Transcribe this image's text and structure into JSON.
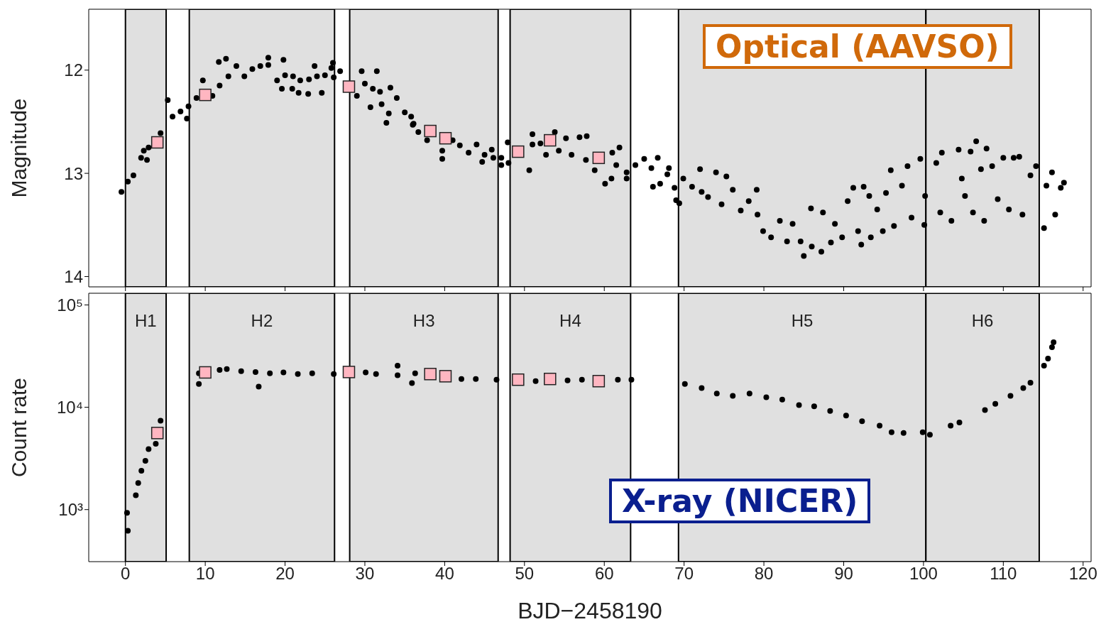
{
  "chart_data": [
    {
      "type": "scatter",
      "ylabel": "Magnitude",
      "xlim": [
        -4.6,
        121
      ],
      "xticks": [
        0,
        10,
        20,
        30,
        40,
        50,
        60,
        70,
        80,
        90,
        100,
        110,
        120
      ],
      "ylim": [
        14.1,
        11.41
      ],
      "yticks": [
        12,
        13,
        14
      ],
      "tick_labels": "y",
      "annotations": [
        "Optical (AAVSO)"
      ],
      "bands": [
        {
          "axis": "x",
          "from": 0,
          "to": 5.1,
          "color": "#e0e0e0"
        },
        {
          "axis": "x",
          "from": 8,
          "to": 26.2,
          "color": "#e0e0e0"
        },
        {
          "axis": "x",
          "from": 28.1,
          "to": 46.7,
          "color": "#e0e0e0"
        },
        {
          "axis": "x",
          "from": 48.2,
          "to": 63.3,
          "color": "#e0e0e0"
        },
        {
          "axis": "x",
          "from": 69.3,
          "to": 100.3,
          "color": "#e0e0e0"
        },
        {
          "axis": "x",
          "from": 100.3,
          "to": 114.5,
          "color": "#e0e0e0"
        }
      ],
      "series": [
        {
          "color": "#000000",
          "marker": "circle",
          "x": [
            -0.5,
            0.3,
            1.0,
            1.96,
            2.3,
            2.7,
            2.9,
            4.4,
            5.3,
            5.9,
            6.9,
            7.7,
            7.9,
            8.9,
            9.7,
            10.9,
            11.7,
            11.8,
            12.6,
            12.9,
            13.9,
            14.9,
            15.9,
            16.9,
            17.9,
            17.9,
            19.8,
            19.0,
            19.6,
            20.0,
            21.0,
            20.9,
            21.7,
            21.9,
            22.9,
            23.0,
            23.7,
            24.0,
            24.6,
            25.0,
            25.8,
            26.0,
            26.1,
            26.9,
            29.0,
            29.6,
            30.0,
            30.7,
            31.0,
            31.5,
            31.9,
            32.1,
            32.7,
            33.2,
            33.0,
            34.0,
            35.0,
            35.8,
            36.0,
            36.1,
            36.7,
            37.8,
            39.7,
            39.7,
            41.0,
            41.9,
            43.0,
            44.0,
            44.7,
            45.0,
            45.9,
            46.1,
            47.1,
            47.1,
            47.9,
            48.0,
            50.6,
            51.0,
            51.0,
            52.0,
            52.7,
            53.8,
            54.3,
            55.2,
            55.9,
            56.9,
            57.8,
            57.7,
            58.8,
            60.1,
            60.9,
            61.0,
            61.9,
            61.5,
            62.8,
            62.8,
            63.9,
            65.0,
            65.9,
            66.7,
            66.1,
            67.0,
            68.1,
            67.9,
            68.8,
            69.4,
            69.0,
            69.9,
            71.0,
            72.0,
            72.2,
            73.0,
            74.0,
            74.7,
            75.3,
            76.1,
            77.1,
            78.1,
            79.1,
            79.2,
            79.9,
            80.9,
            82.0,
            82.9,
            83.6,
            84.6,
            85.0,
            85.9,
            86.0,
            87.2,
            87.4,
            88.4,
            88.9,
            89.8,
            90.5,
            91.2,
            91.8,
            92.2,
            92.5,
            93.2,
            93.4,
            94.2,
            94.9,
            95.3,
            95.9,
            96.3,
            97.3,
            98.0,
            98.5,
            99.6,
            100.1,
            100.2,
            101.6,
            102.3,
            102.1,
            103.5,
            104.4,
            104.8,
            105.2,
            105.9,
            106.2,
            106.6,
            107.2,
            107.6,
            107.9,
            108.6,
            109.3,
            110.0,
            110.7,
            111.3,
            112.0,
            112.4,
            113.4,
            114.1,
            115.1,
            115.4,
            116.1,
            116.5,
            117.2,
            117.6
          ],
          "values": [
            13.18,
            13.08,
            13.02,
            12.85,
            12.78,
            12.87,
            12.75,
            12.61,
            12.29,
            12.45,
            12.4,
            12.47,
            12.35,
            12.27,
            12.1,
            12.25,
            11.92,
            12.15,
            11.89,
            12.06,
            11.96,
            12.06,
            11.99,
            11.96,
            11.88,
            11.95,
            11.9,
            12.1,
            12.18,
            12.05,
            12.06,
            12.18,
            12.22,
            12.1,
            12.23,
            12.09,
            11.96,
            12.06,
            12.22,
            12.05,
            11.98,
            11.93,
            12.07,
            12.01,
            12.25,
            12.01,
            12.13,
            12.36,
            12.18,
            12.01,
            12.21,
            12.33,
            12.51,
            12.17,
            12.42,
            12.27,
            12.41,
            12.45,
            12.53,
            12.52,
            12.6,
            12.68,
            12.78,
            12.86,
            12.68,
            12.73,
            12.8,
            12.72,
            12.89,
            12.82,
            12.77,
            12.85,
            12.85,
            12.92,
            12.7,
            12.9,
            12.97,
            12.62,
            12.72,
            12.71,
            12.82,
            12.6,
            12.78,
            12.66,
            12.82,
            12.65,
            12.64,
            12.87,
            12.97,
            13.1,
            13.05,
            12.8,
            12.75,
            12.92,
            12.99,
            13.05,
            12.92,
            12.86,
            12.95,
            12.85,
            13.13,
            13.1,
            12.95,
            13.01,
            13.14,
            13.29,
            13.26,
            13.05,
            13.13,
            12.96,
            13.18,
            13.23,
            12.99,
            13.3,
            13.03,
            13.16,
            13.36,
            13.27,
            13.16,
            13.4,
            13.56,
            13.62,
            13.46,
            13.66,
            13.49,
            13.66,
            13.8,
            13.34,
            13.71,
            13.76,
            13.38,
            13.67,
            13.49,
            13.62,
            13.27,
            13.14,
            13.56,
            13.69,
            13.13,
            13.22,
            13.62,
            13.35,
            13.56,
            13.19,
            12.97,
            13.51,
            13.12,
            12.93,
            13.43,
            12.86,
            13.5,
            13.22,
            12.9,
            12.8,
            13.38,
            13.46,
            12.77,
            13.05,
            13.22,
            12.79,
            13.38,
            12.69,
            12.96,
            13.46,
            12.76,
            12.93,
            13.25,
            12.85,
            13.35,
            12.85,
            12.84,
            13.4,
            13.02,
            12.93,
            13.53,
            13.12,
            12.99,
            13.4,
            13.14,
            13.09
          ]
        },
        {
          "color": "#ffb6c1",
          "marker": "square",
          "x": [
            4.0,
            10.0,
            28.0,
            38.2,
            40.1,
            49.2,
            53.2,
            59.3
          ],
          "values": [
            12.7,
            12.24,
            12.16,
            12.59,
            12.66,
            12.79,
            12.68,
            12.85
          ]
        }
      ]
    },
    {
      "type": "scatter",
      "xlabel": "BJD−2458190",
      "ylabel": "Count rate",
      "xlim": [
        -4.6,
        121
      ],
      "xticks": [
        0,
        10,
        20,
        30,
        40,
        50,
        60,
        70,
        80,
        90,
        100,
        110,
        120
      ],
      "ylim": [
        310,
        130000
      ],
      "yticks": [
        {
          "value": 1000,
          "label": "10³"
        },
        {
          "value": 10000,
          "label": "10⁴"
        },
        {
          "value": 100000,
          "label": "10⁵"
        }
      ],
      "log": "y",
      "annotations": [
        "X-ray (NICER)"
      ],
      "bands": [
        {
          "axis": "x",
          "from": 0,
          "to": 5.1,
          "label": "H1",
          "color": "#e0e0e0"
        },
        {
          "axis": "x",
          "from": 8,
          "to": 26.2,
          "label": "H2",
          "color": "#e0e0e0"
        },
        {
          "axis": "x",
          "from": 28.1,
          "to": 46.7,
          "label": "H3",
          "color": "#e0e0e0"
        },
        {
          "axis": "x",
          "from": 48.2,
          "to": 63.3,
          "label": "H4",
          "color": "#e0e0e0"
        },
        {
          "axis": "x",
          "from": 69.3,
          "to": 100.3,
          "label": "H5",
          "color": "#e0e0e0"
        },
        {
          "axis": "x",
          "from": 100.3,
          "to": 114.5,
          "label": "H6",
          "color": "#e0e0e0"
        }
      ],
      "series": [
        {
          "color": "#000000",
          "marker": "circle",
          "x": [
            0.2,
            0.3,
            1.3,
            1.6,
            2.0,
            2.5,
            2.9,
            3.8,
            4.4,
            9.2,
            9.2,
            11.8,
            12.7,
            14.5,
            16.7,
            16.3,
            18.1,
            19.8,
            21.6,
            23.4,
            26.1,
            30.1,
            31.4,
            34.1,
            34.1,
            35.9,
            36.3,
            42.1,
            43.9,
            46.5,
            51.4,
            55.4,
            57.2,
            61.7,
            63.4,
            70.1,
            72.2,
            74.1,
            76.1,
            78.2,
            80.3,
            82.3,
            84.4,
            86.3,
            88.3,
            90.3,
            92.3,
            94.5,
            96.0,
            97.5,
            99.9,
            100.8,
            103.4,
            104.5,
            107.7,
            109.0,
            110.9,
            112.5,
            113.4,
            115.1,
            115.6,
            116.1,
            116.3
          ],
          "values": [
            930,
            620,
            1380,
            1820,
            2400,
            3000,
            3900,
            4400,
            7400,
            21500,
            16900,
            23200,
            23600,
            22500,
            15900,
            22100,
            21500,
            21900,
            21100,
            21500,
            21100,
            21900,
            21100,
            25500,
            20500,
            17200,
            21500,
            18900,
            18900,
            18600,
            18000,
            18300,
            18600,
            18600,
            18600,
            16900,
            15400,
            13600,
            12900,
            13600,
            12500,
            11900,
            10500,
            10200,
            9200,
            8300,
            7300,
            6600,
            5700,
            5600,
            5700,
            5400,
            6600,
            7100,
            9400,
            10800,
            12900,
            15400,
            17400,
            25500,
            29900,
            38600,
            43100
          ]
        },
        {
          "color": "#ffb6c1",
          "marker": "square",
          "x": [
            4.0,
            10.0,
            28.0,
            38.2,
            40.1,
            49.2,
            53.2,
            59.3
          ],
          "values": [
            5600,
            21900,
            22100,
            21100,
            20100,
            18600,
            18900,
            18000
          ]
        }
      ]
    }
  ]
}
